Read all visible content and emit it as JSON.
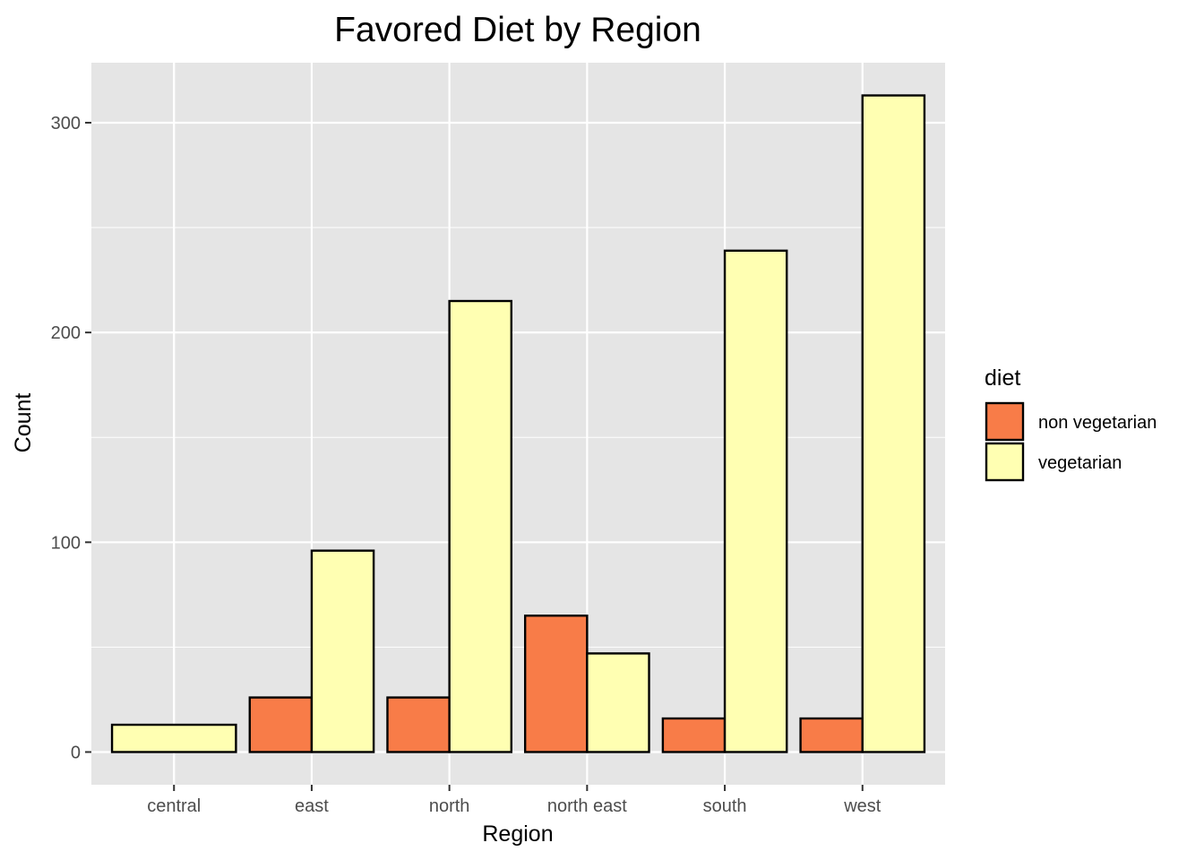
{
  "chart_data": {
    "type": "bar",
    "title": "Favored Diet by Region",
    "xlabel": "Region",
    "ylabel": "Count",
    "categories": [
      "central",
      "east",
      "north",
      "north east",
      "south",
      "west"
    ],
    "series": [
      {
        "name": "non vegetarian",
        "color": "#f87c48",
        "values": [
          0,
          26,
          26,
          65,
          16,
          16
        ]
      },
      {
        "name": "vegetarian",
        "color": "#ffffb2",
        "values": [
          13,
          96,
          215,
          47,
          239,
          313
        ]
      }
    ],
    "dodge": "preserve-total",
    "ylim": [
      -15.6,
      328.6
    ],
    "yticks": [
      0,
      100,
      200,
      300
    ],
    "grid": true,
    "legend": {
      "title": "diet",
      "position": "right"
    },
    "colors": {
      "panel": "#e5e5e5",
      "grid": "#ffffff",
      "bar_outline": "#000000"
    }
  }
}
